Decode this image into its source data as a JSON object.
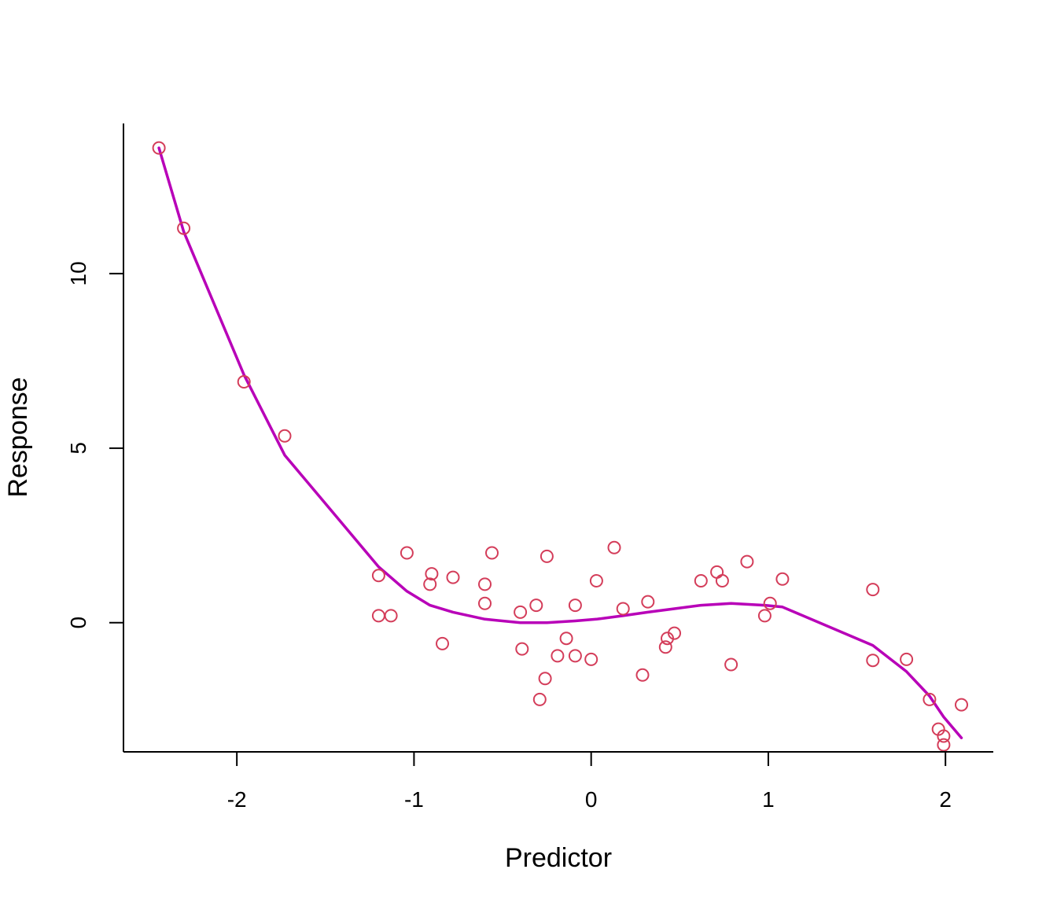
{
  "chart_data": {
    "type": "scatter",
    "title": "",
    "xlabel": "Predictor",
    "ylabel": "Response",
    "xlim": [
      -2.64,
      2.27
    ],
    "ylim": [
      -3.7,
      14.3
    ],
    "x_ticks": [
      -2,
      -1,
      0,
      1,
      2
    ],
    "x_tick_labels": [
      "-2",
      "-1",
      "0",
      "1",
      "2"
    ],
    "y_ticks": [
      0,
      5,
      10
    ],
    "y_tick_labels": [
      "0",
      "5",
      "10"
    ],
    "grid": false,
    "legend": "none",
    "colors": {
      "points": "#d43d5a",
      "fit_line": "#b800b8",
      "axes": "#000000"
    },
    "points": {
      "x": [
        -2.44,
        -2.3,
        -1.96,
        -1.73,
        -1.2,
        -1.2,
        -1.13,
        -1.04,
        -0.9,
        -0.91,
        -0.84,
        -0.78,
        -0.6,
        -0.6,
        -0.56,
        -0.4,
        -0.39,
        -0.31,
        -0.29,
        -0.26,
        -0.25,
        -0.19,
        -0.14,
        -0.09,
        -0.09,
        0.0,
        0.03,
        0.13,
        0.18,
        0.29,
        0.32,
        0.42,
        0.43,
        0.47,
        0.62,
        0.71,
        0.74,
        0.79,
        0.88,
        0.98,
        1.01,
        1.08,
        1.59,
        1.59,
        1.78,
        1.91,
        1.96,
        1.99,
        1.99,
        2.09
      ],
      "y": [
        13.6,
        11.3,
        6.9,
        5.35,
        1.35,
        0.2,
        0.2,
        2.0,
        1.4,
        1.1,
        -0.6,
        1.3,
        1.1,
        0.55,
        2.0,
        0.3,
        -0.75,
        0.5,
        -2.2,
        -1.6,
        1.9,
        -0.95,
        -0.45,
        0.5,
        -0.95,
        -1.05,
        1.2,
        2.15,
        0.4,
        -1.5,
        0.6,
        -0.7,
        -0.45,
        -0.3,
        1.2,
        1.45,
        1.2,
        -1.2,
        1.75,
        0.2,
        0.55,
        1.25,
        0.95,
        -1.08,
        -1.05,
        -2.2,
        -3.05,
        -3.25,
        -3.5,
        -2.35
      ]
    },
    "series": [
      {
        "x": [
          -2.44,
          -2.3,
          -1.96,
          -1.73,
          -1.2,
          -1.04,
          -0.91,
          -0.78,
          -0.6,
          -0.4,
          -0.25,
          -0.09,
          0.03,
          0.18,
          0.32,
          0.47,
          0.62,
          0.79,
          0.98,
          1.08,
          1.59,
          1.78,
          1.91,
          1.99,
          2.09
        ],
        "y": [
          13.6,
          11.2,
          7.1,
          4.8,
          1.6,
          0.9,
          0.5,
          0.3,
          0.1,
          0.0,
          0.0,
          0.05,
          0.1,
          0.2,
          0.3,
          0.4,
          0.5,
          0.55,
          0.5,
          0.45,
          -0.65,
          -1.4,
          -2.1,
          -2.7,
          -3.3
        ]
      }
    ]
  }
}
